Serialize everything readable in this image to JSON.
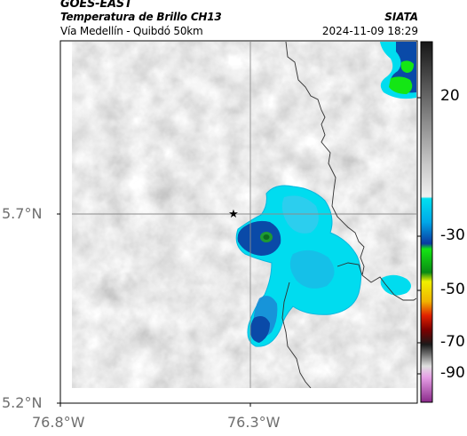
{
  "header": {
    "satellite": "GOES-EAST",
    "product": "Temperatura de Brillo CH13",
    "region": "Vía Medellín - Quibdó 50km",
    "source": "SIATA",
    "datetime": "2024-11-09 18:29"
  },
  "axes": {
    "lat_labels": [
      "5.7°N",
      "5.2°N"
    ],
    "lon_labels": [
      "76.8°W",
      "76.3°W"
    ]
  },
  "colorbar": {
    "tick_labels": [
      "20",
      "-30",
      "-50",
      "-70",
      "-90"
    ]
  },
  "colors": {
    "cold_cyan": "#00e0f0",
    "cold_blue": "#0a4aa8",
    "deep_green": "#1e9a32",
    "bright_green": "#14e614"
  },
  "map": {
    "marker_icon": "star-icon",
    "boundary": "department border line"
  }
}
